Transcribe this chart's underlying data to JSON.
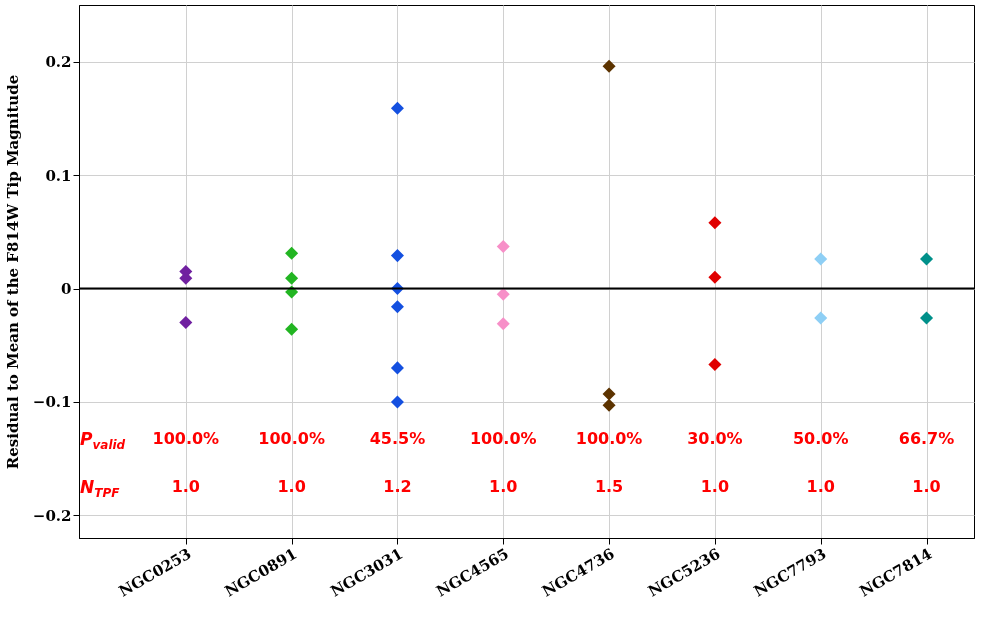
{
  "chart_data": {
    "type": "scatter",
    "ylabel": "Residual to Mean of the F814W Tip Magnitude",
    "categories": [
      "NGC0253",
      "NGC0891",
      "NGC3031",
      "NGC4565",
      "NGC4736",
      "NGC5236",
      "NGC7793",
      "NGC7814"
    ],
    "series": [
      {
        "color": "#7020a0",
        "x": [
          "NGC0253",
          "NGC0253",
          "NGC0253"
        ],
        "values": [
          0.015,
          0.009,
          -0.03
        ]
      },
      {
        "color": "#22b522",
        "x": [
          "NGC0891",
          "NGC0891",
          "NGC0891",
          "NGC0891"
        ],
        "values": [
          0.031,
          0.009,
          -0.003,
          -0.036
        ]
      },
      {
        "color": "#1450e0",
        "x": [
          "NGC3031",
          "NGC3031",
          "NGC3031",
          "NGC3031",
          "NGC3031",
          "NGC3031"
        ],
        "values": [
          0.159,
          0.029,
          0.0,
          -0.016,
          -0.07,
          -0.1
        ]
      },
      {
        "color": "#f78fc8",
        "x": [
          "NGC4565",
          "NGC4565",
          "NGC4565"
        ],
        "values": [
          0.037,
          -0.005,
          -0.031
        ]
      },
      {
        "color": "#5c3300",
        "x": [
          "NGC4736",
          "NGC4736",
          "NGC4736"
        ],
        "values": [
          0.196,
          -0.093,
          -0.103
        ]
      },
      {
        "color": "#e00000",
        "x": [
          "NGC5236",
          "NGC5236",
          "NGC5236"
        ],
        "values": [
          0.058,
          0.01,
          -0.067
        ]
      },
      {
        "color": "#8ecff5",
        "x": [
          "NGC7793",
          "NGC7793"
        ],
        "values": [
          0.026,
          -0.026
        ]
      },
      {
        "color": "#00908a",
        "x": [
          "NGC7814",
          "NGC7814"
        ],
        "values": [
          0.026,
          -0.026
        ]
      }
    ],
    "ylim": [
      -0.22,
      0.25
    ],
    "yticks": [
      {
        "value": -0.2,
        "label": "−0.2"
      },
      {
        "value": -0.1,
        "label": "−0.1"
      },
      0.0,
      0.1,
      0.2
    ],
    "grid": true,
    "marker": "diamond",
    "ref_lines": [
      {
        "axis": "y",
        "value": 0,
        "color": "#000000"
      }
    ],
    "annotations": [
      "P$_{valid}$",
      "100.0%",
      "100.0%",
      "45.5%",
      "100.0%",
      "100.0%",
      "30.0%",
      "50.0%",
      "66.7%",
      "N$_{TPF}$",
      "1.0",
      "1.0",
      "1.2",
      "1.0",
      "1.5",
      "1.0",
      "1.0",
      "1.0"
    ]
  }
}
